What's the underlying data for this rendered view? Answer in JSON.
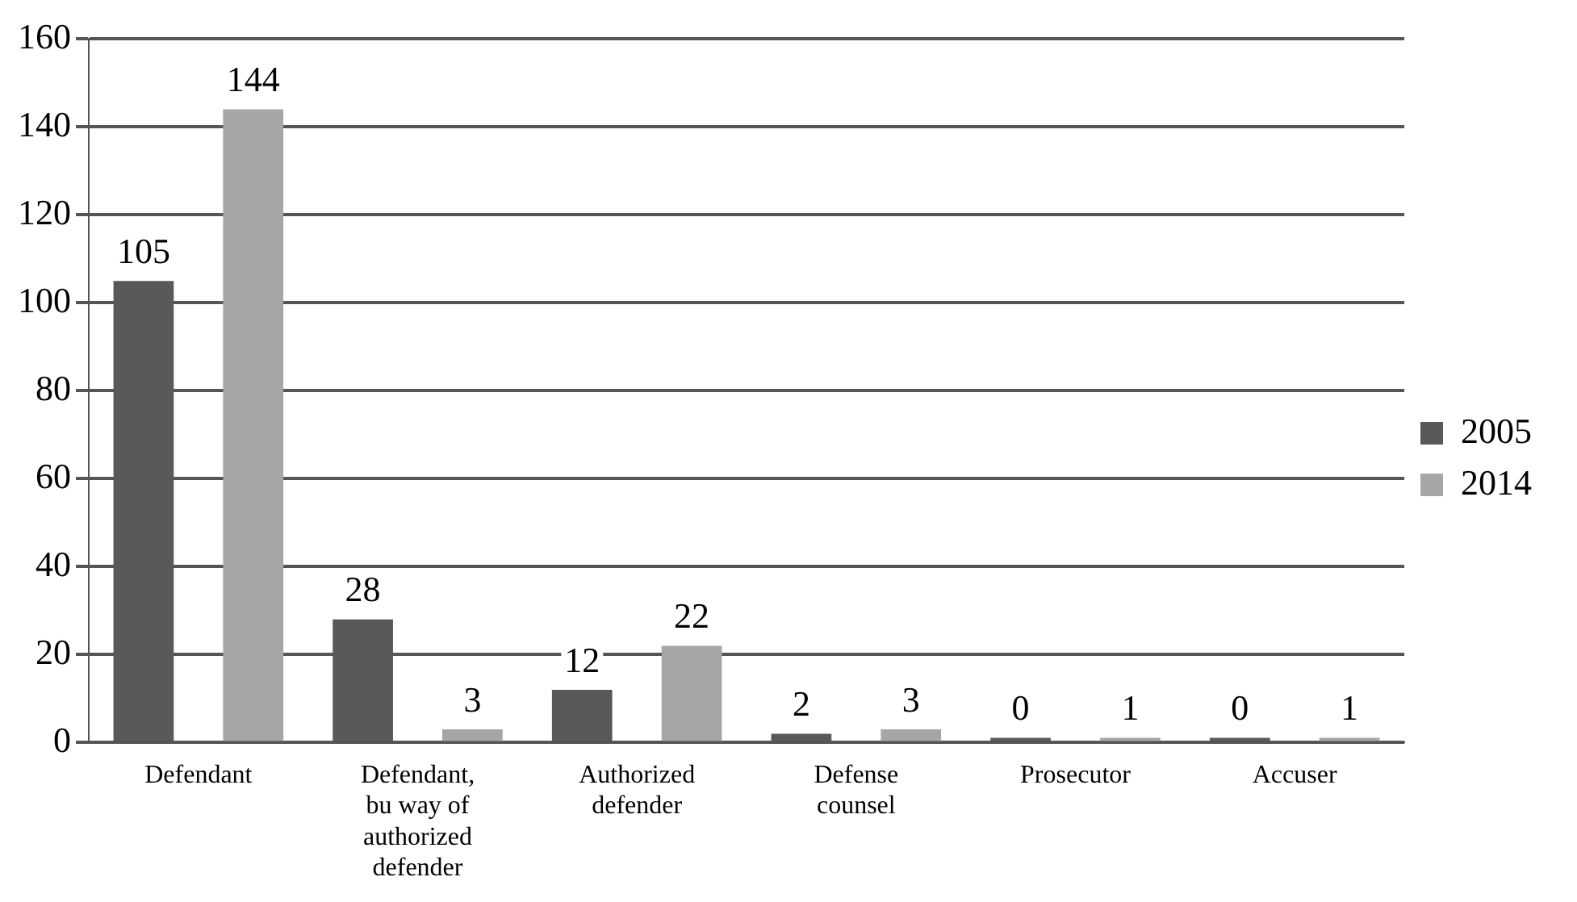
{
  "chart_data": {
    "type": "bar",
    "categories": [
      "Defendant",
      "Defendant, bu way of authorized defender",
      "Authorized defender",
      "Defense counsel",
      "Prosecutor",
      "Accuser"
    ],
    "series": [
      {
        "name": "2005",
        "color": "#595959",
        "values": [
          105,
          28,
          12,
          2,
          0,
          0
        ]
      },
      {
        "name": "2014",
        "color": "#a6a6a6",
        "values": [
          144,
          3,
          22,
          3,
          1,
          1
        ]
      }
    ],
    "ylim": [
      0,
      160
    ],
    "yticks": [
      0,
      20,
      40,
      60,
      80,
      100,
      120,
      140,
      160
    ],
    "grid": "y",
    "legend": "right",
    "data_labels": true
  }
}
